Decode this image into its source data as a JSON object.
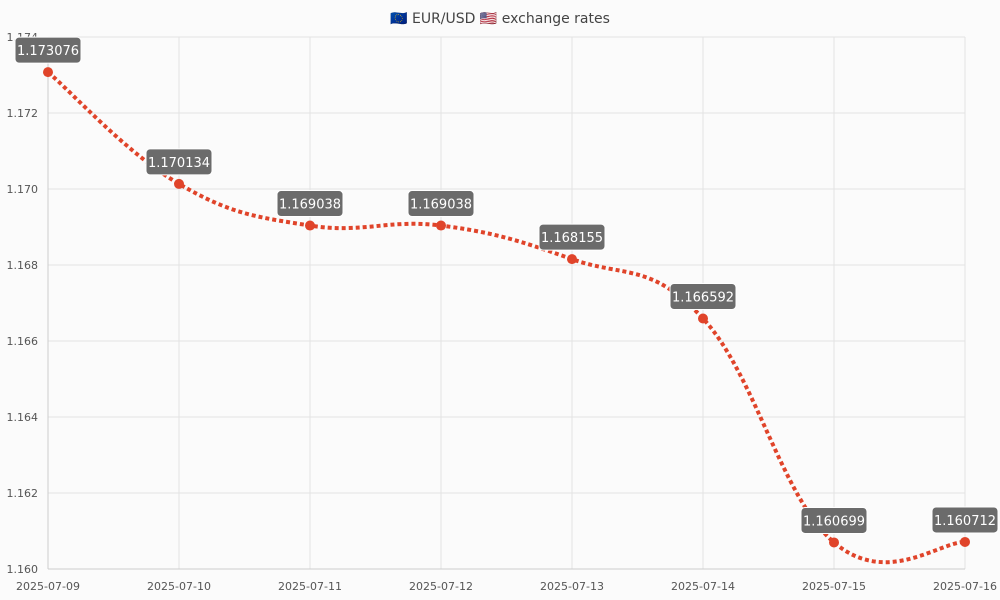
{
  "chart_data": {
    "type": "line",
    "title": "🇪🇺 EUR/USD 🇺🇸 exchange rates",
    "xlabel": "",
    "ylabel": "",
    "x": [
      "2025-07-09",
      "2025-07-10",
      "2025-07-11",
      "2025-07-12",
      "2025-07-13",
      "2025-07-14",
      "2025-07-15",
      "2025-07-16"
    ],
    "series": [
      {
        "values": [
          1.173076,
          1.170134,
          1.169038,
          1.169038,
          1.168155,
          1.166592,
          1.160699,
          1.160712
        ],
        "labels": [
          "1.173076",
          "1.170134",
          "1.169038",
          "1.169038",
          "1.168155",
          "1.166592",
          "1.160699",
          "1.160712"
        ],
        "color": "#e0442a"
      }
    ],
    "ylim": [
      1.16,
      1.174
    ],
    "yticks": [
      "1.174",
      "1.172",
      "1.170",
      "1.168",
      "1.166",
      "1.164",
      "1.162",
      "1.160"
    ],
    "ytick_values": [
      1.174,
      1.172,
      1.17,
      1.168,
      1.166,
      1.164,
      1.162,
      1.16
    ],
    "grid": true,
    "line_style": "dotted",
    "smooth": true,
    "data_label_background": "#6b6b6b",
    "grid_color": "#e3e3e3"
  }
}
